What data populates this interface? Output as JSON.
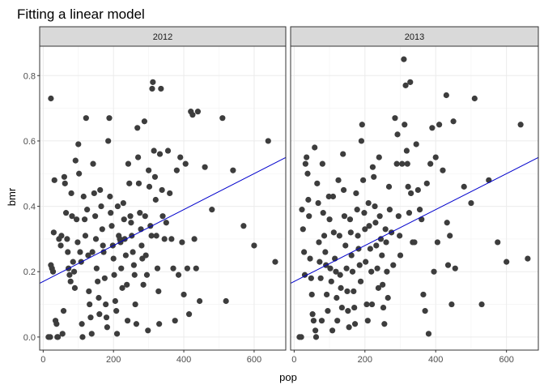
{
  "chart_data": {
    "type": "scatter",
    "title": "Fitting a linear model",
    "xlabel": "pop",
    "ylabel": "bmr",
    "xlim": [
      -10,
      690
    ],
    "ylim": [
      -0.04,
      0.89
    ],
    "xticks": [
      0,
      200,
      400,
      600
    ],
    "yticks": [
      0.0,
      0.2,
      0.4,
      0.6,
      0.8
    ],
    "xtick_labels": [
      "0",
      "200",
      "400",
      "600"
    ],
    "ytick_labels": [
      "0.0",
      "0.2",
      "0.4",
      "0.6",
      "0.8"
    ],
    "grid": true,
    "legend": "none",
    "colors": {
      "points": "#3d3d3d",
      "fit_line": "#0000cc",
      "strip_background": "#d9d9d9",
      "panel_border": "#333333",
      "grid": "#ebebeb"
    },
    "fit": {
      "intercept": 0.17,
      "slope": 0.00055
    },
    "panels": [
      {
        "label": "2012",
        "points": [
          [
            15,
            0.0
          ],
          [
            20,
            0.0
          ],
          [
            22,
            0.73
          ],
          [
            22,
            0.22
          ],
          [
            25,
            0.21
          ],
          [
            28,
            0.2
          ],
          [
            30,
            0.32
          ],
          [
            32,
            0.48
          ],
          [
            35,
            0.05
          ],
          [
            38,
            0.04
          ],
          [
            40,
            0.0
          ],
          [
            42,
            0.0
          ],
          [
            45,
            0.3
          ],
          [
            50,
            0.28
          ],
          [
            52,
            0.31
          ],
          [
            55,
            0.01
          ],
          [
            58,
            0.08
          ],
          [
            60,
            0.49
          ],
          [
            62,
            0.47
          ],
          [
            65,
            0.38
          ],
          [
            68,
            0.3
          ],
          [
            70,
            0.26
          ],
          [
            72,
            0.21
          ],
          [
            75,
            0.19
          ],
          [
            78,
            0.17
          ],
          [
            80,
            0.44
          ],
          [
            82,
            0.37
          ],
          [
            85,
            0.23
          ],
          [
            88,
            0.2
          ],
          [
            90,
            0.15
          ],
          [
            92,
            0.54
          ],
          [
            95,
            0.36
          ],
          [
            98,
            0.29
          ],
          [
            100,
            0.59
          ],
          [
            102,
            0.5
          ],
          [
            105,
            0.26
          ],
          [
            108,
            0.23
          ],
          [
            110,
            0.04
          ],
          [
            112,
            0.0
          ],
          [
            115,
            0.43
          ],
          [
            118,
            0.36
          ],
          [
            120,
            0.31
          ],
          [
            122,
            0.67
          ],
          [
            125,
            0.39
          ],
          [
            128,
            0.25
          ],
          [
            130,
            0.14
          ],
          [
            132,
            0.1
          ],
          [
            135,
            0.06
          ],
          [
            138,
            0.01
          ],
          [
            140,
            0.26
          ],
          [
            142,
            0.53
          ],
          [
            145,
            0.44
          ],
          [
            148,
            0.37
          ],
          [
            150,
            0.3
          ],
          [
            152,
            0.21
          ],
          [
            155,
            0.17
          ],
          [
            158,
            0.12
          ],
          [
            160,
            0.07
          ],
          [
            162,
            0.45
          ],
          [
            165,
            0.4
          ],
          [
            168,
            0.33
          ],
          [
            170,
            0.28
          ],
          [
            172,
            0.26
          ],
          [
            175,
            0.18
          ],
          [
            178,
            0.1
          ],
          [
            180,
            0.06
          ],
          [
            182,
            0.03
          ],
          [
            185,
            0.6
          ],
          [
            188,
            0.67
          ],
          [
            190,
            0.43
          ],
          [
            192,
            0.38
          ],
          [
            195,
            0.34
          ],
          [
            198,
            0.28
          ],
          [
            200,
            0.24
          ],
          [
            202,
            0.19
          ],
          [
            205,
            0.11
          ],
          [
            208,
            0.08
          ],
          [
            210,
            0.01
          ],
          [
            212,
            0.4
          ],
          [
            215,
            0.31
          ],
          [
            218,
            0.3
          ],
          [
            220,
            0.29
          ],
          [
            222,
            0.21
          ],
          [
            225,
            0.15
          ],
          [
            228,
            0.41
          ],
          [
            230,
            0.36
          ],
          [
            232,
            0.3
          ],
          [
            235,
            0.25
          ],
          [
            238,
            0.16
          ],
          [
            240,
            0.05
          ],
          [
            242,
            0.53
          ],
          [
            245,
            0.47
          ],
          [
            248,
            0.37
          ],
          [
            250,
            0.35
          ],
          [
            252,
            0.31
          ],
          [
            255,
            0.26
          ],
          [
            258,
            0.22
          ],
          [
            260,
            0.19
          ],
          [
            262,
            0.1
          ],
          [
            265,
            0.04
          ],
          [
            268,
            0.64
          ],
          [
            270,
            0.55
          ],
          [
            272,
            0.47
          ],
          [
            275,
            0.38
          ],
          [
            278,
            0.33
          ],
          [
            280,
            0.28
          ],
          [
            282,
            0.24
          ],
          [
            285,
            0.16
          ],
          [
            288,
            0.66
          ],
          [
            290,
            0.37
          ],
          [
            292,
            0.25
          ],
          [
            295,
            0.19
          ],
          [
            298,
            0.02
          ],
          [
            300,
            0.51
          ],
          [
            302,
            0.46
          ],
          [
            305,
            0.34
          ],
          [
            308,
            0.31
          ],
          [
            310,
            0.76
          ],
          [
            312,
            0.78
          ],
          [
            315,
            0.57
          ],
          [
            318,
            0.49
          ],
          [
            320,
            0.42
          ],
          [
            322,
            0.31
          ],
          [
            325,
            0.21
          ],
          [
            328,
            0.14
          ],
          [
            330,
            0.04
          ],
          [
            332,
            0.56
          ],
          [
            335,
            0.76
          ],
          [
            338,
            0.45
          ],
          [
            340,
            0.37
          ],
          [
            345,
            0.3
          ],
          [
            350,
            0.35
          ],
          [
            355,
            0.57
          ],
          [
            360,
            0.44
          ],
          [
            365,
            0.3
          ],
          [
            370,
            0.21
          ],
          [
            375,
            0.05
          ],
          [
            380,
            0.51
          ],
          [
            385,
            0.19
          ],
          [
            390,
            0.55
          ],
          [
            395,
            0.29
          ],
          [
            400,
            0.13
          ],
          [
            405,
            0.53
          ],
          [
            410,
            0.21
          ],
          [
            415,
            0.07
          ],
          [
            420,
            0.69
          ],
          [
            425,
            0.68
          ],
          [
            430,
            0.3
          ],
          [
            435,
            0.21
          ],
          [
            440,
            0.69
          ],
          [
            445,
            0.11
          ],
          [
            460,
            0.52
          ],
          [
            480,
            0.39
          ],
          [
            510,
            0.67
          ],
          [
            520,
            0.11
          ],
          [
            540,
            0.51
          ],
          [
            570,
            0.34
          ],
          [
            600,
            0.28
          ],
          [
            640,
            0.6
          ],
          [
            660,
            0.23
          ]
        ]
      },
      {
        "label": "2013",
        "points": [
          [
            15,
            0.0
          ],
          [
            20,
            0.0
          ],
          [
            22,
            0.39
          ],
          [
            25,
            0.33
          ],
          [
            28,
            0.26
          ],
          [
            30,
            0.19
          ],
          [
            32,
            0.53
          ],
          [
            35,
            0.55
          ],
          [
            38,
            0.5
          ],
          [
            40,
            0.42
          ],
          [
            42,
            0.37
          ],
          [
            45,
            0.24
          ],
          [
            48,
            0.18
          ],
          [
            50,
            0.13
          ],
          [
            52,
            0.07
          ],
          [
            55,
            0.05
          ],
          [
            58,
            0.58
          ],
          [
            60,
            0.02
          ],
          [
            62,
            0.0
          ],
          [
            65,
            0.47
          ],
          [
            68,
            0.41
          ],
          [
            70,
            0.29
          ],
          [
            72,
            0.23
          ],
          [
            75,
            0.18
          ],
          [
            78,
            0.05
          ],
          [
            80,
            0.53
          ],
          [
            82,
            0.38
          ],
          [
            85,
            0.31
          ],
          [
            88,
            0.26
          ],
          [
            90,
            0.22
          ],
          [
            92,
            0.13
          ],
          [
            95,
            0.08
          ],
          [
            98,
            0.43
          ],
          [
            100,
            0.36
          ],
          [
            102,
            0.21
          ],
          [
            105,
            0.17
          ],
          [
            108,
            0.02
          ],
          [
            110,
            0.43
          ],
          [
            112,
            0.32
          ],
          [
            115,
            0.24
          ],
          [
            118,
            0.2
          ],
          [
            120,
            0.12
          ],
          [
            122,
            0.05
          ],
          [
            125,
            0.48
          ],
          [
            128,
            0.31
          ],
          [
            130,
            0.19
          ],
          [
            132,
            0.15
          ],
          [
            135,
            0.09
          ],
          [
            138,
            0.56
          ],
          [
            140,
            0.45
          ],
          [
            142,
            0.37
          ],
          [
            145,
            0.28
          ],
          [
            148,
            0.21
          ],
          [
            150,
            0.14
          ],
          [
            152,
            0.08
          ],
          [
            155,
            0.03
          ],
          [
            158,
            0.36
          ],
          [
            160,
            0.32
          ],
          [
            162,
            0.25
          ],
          [
            165,
            0.2
          ],
          [
            168,
            0.14
          ],
          [
            170,
            0.09
          ],
          [
            172,
            0.04
          ],
          [
            175,
            0.44
          ],
          [
            178,
            0.39
          ],
          [
            180,
            0.31
          ],
          [
            182,
            0.27
          ],
          [
            185,
            0.22
          ],
          [
            188,
            0.17
          ],
          [
            190,
            0.6
          ],
          [
            192,
            0.65
          ],
          [
            195,
            0.48
          ],
          [
            198,
            0.38
          ],
          [
            200,
            0.33
          ],
          [
            202,
            0.23
          ],
          [
            205,
            0.1
          ],
          [
            208,
            0.05
          ],
          [
            210,
            0.41
          ],
          [
            212,
            0.34
          ],
          [
            215,
            0.27
          ],
          [
            218,
            0.2
          ],
          [
            220,
            0.1
          ],
          [
            222,
            0.52
          ],
          [
            225,
            0.49
          ],
          [
            228,
            0.4
          ],
          [
            230,
            0.35
          ],
          [
            232,
            0.28
          ],
          [
            235,
            0.21
          ],
          [
            238,
            0.15
          ],
          [
            240,
            0.55
          ],
          [
            242,
            0.37
          ],
          [
            245,
            0.3
          ],
          [
            248,
            0.25
          ],
          [
            250,
            0.16
          ],
          [
            252,
            0.09
          ],
          [
            255,
            0.04
          ],
          [
            258,
            0.33
          ],
          [
            260,
            0.29
          ],
          [
            262,
            0.2
          ],
          [
            265,
            0.12
          ],
          [
            268,
            0.46
          ],
          [
            270,
            0.39
          ],
          [
            275,
            0.32
          ],
          [
            280,
            0.22
          ],
          [
            285,
            0.67
          ],
          [
            290,
            0.53
          ],
          [
            292,
            0.62
          ],
          [
            295,
            0.37
          ],
          [
            298,
            0.31
          ],
          [
            300,
            0.25
          ],
          [
            305,
            0.53
          ],
          [
            310,
            0.85
          ],
          [
            312,
            0.65
          ],
          [
            315,
            0.77
          ],
          [
            318,
            0.57
          ],
          [
            320,
            0.53
          ],
          [
            322,
            0.46
          ],
          [
            325,
            0.38
          ],
          [
            328,
            0.78
          ],
          [
            330,
            0.44
          ],
          [
            335,
            0.29
          ],
          [
            340,
            0.29
          ],
          [
            345,
            0.59
          ],
          [
            350,
            0.45
          ],
          [
            355,
            0.39
          ],
          [
            360,
            0.36
          ],
          [
            365,
            0.13
          ],
          [
            370,
            0.08
          ],
          [
            375,
            0.47
          ],
          [
            380,
            0.01
          ],
          [
            385,
            0.53
          ],
          [
            390,
            0.64
          ],
          [
            395,
            0.2
          ],
          [
            400,
            0.55
          ],
          [
            405,
            0.29
          ],
          [
            410,
            0.65
          ],
          [
            420,
            0.51
          ],
          [
            430,
            0.74
          ],
          [
            432,
            0.35
          ],
          [
            435,
            0.22
          ],
          [
            440,
            0.31
          ],
          [
            445,
            0.1
          ],
          [
            450,
            0.66
          ],
          [
            455,
            0.21
          ],
          [
            480,
            0.46
          ],
          [
            500,
            0.41
          ],
          [
            510,
            0.73
          ],
          [
            530,
            0.1
          ],
          [
            550,
            0.48
          ],
          [
            575,
            0.29
          ],
          [
            600,
            0.23
          ],
          [
            640,
            0.65
          ],
          [
            660,
            0.24
          ]
        ]
      }
    ]
  }
}
